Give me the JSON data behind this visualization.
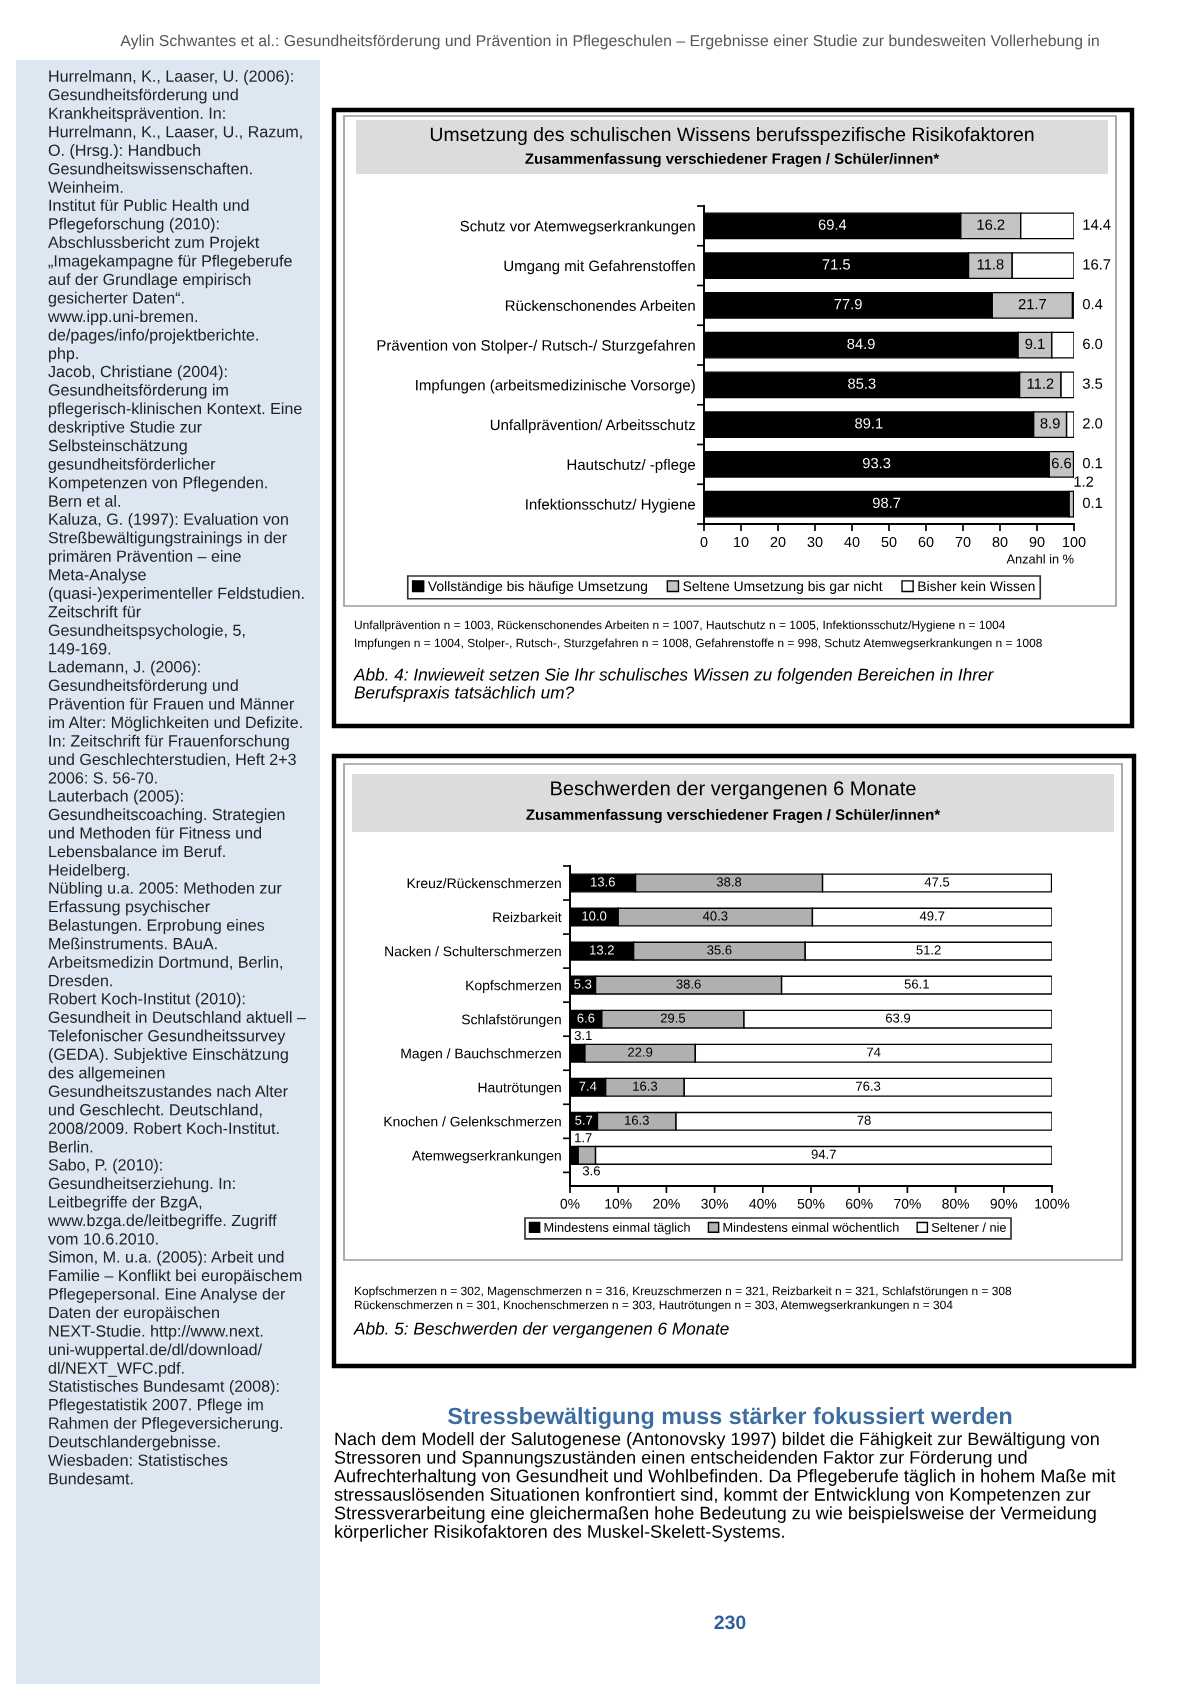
{
  "chart_data": [
    {
      "type": "other",
      "annotations": [
        "Aylin Schwantes et al.: Gesundheitsförderung und Prävention in Pflegeschulen – Ergebnisse einer Studie zur bundesweiten Vollerhebung in",
        "Hurrelmann, K., Laaser, U. (2006): Gesundheitsförderung und Krankheitsprävention. In: Hurrelmann, K., Laaser, U., Razum, O. (Hrsg.): Handbuch Gesundheitswissenschaften. Weinheim.",
        "Institut für Public Health und Pflegeforschung (2010): Abschlussbericht zum Projekt „Imagekampagne für Pflegeberufe auf der Grundlage empirisch gesicherter Daten“. www.ipp.uni-bremen.\nde/pages/info/projektberichte.\nphp.",
        "Jacob, Christiane (2004): Gesundheitsförderung im pflegerisch-klinischen Kontext. Eine deskriptive Studie zur Selbsteinschätzung gesundheitsförderlicher Kompetenzen von Pflegenden. Bern et al.",
        "Kaluza, G. (1997): Evaluation von Streßbewältigungstrainings in der primären Prävention – eine Meta-Analyse (quasi-)experimenteller Feldstudien. Zeitschrift für Gesundheitspsychologie, 5, 149-169.",
        "Lademann, J. (2006): Gesundheitsförderung und Prävention für Frauen und Männer im Alter: Möglichkeiten und Defizite. In: Zeitschrift für Frauenforschung und Geschlechterstudien, Heft 2+3 2006: S. 56-70.",
        "Lauterbach (2005): Gesundheitscoaching. Strategien und Methoden für Fitness und Lebensbalance im Beruf. Heidelberg.",
        "Nübling u.a. 2005: Methoden zur Erfassung psychischer Belastungen. Erprobung eines Meßinstruments. BAuA. Arbeitsmedizin Dortmund, Berlin, Dresden.",
        "Robert Koch-Institut (2010): Gesundheit in Deutschland aktuell – Telefonischer Gesundheitssurvey (GEDA). Subjektive Einschätzung des allgemeinen Gesundheitszustandes nach Alter und Geschlecht. Deutschland, 2008/2009. Robert Koch-Institut. Berlin.",
        "Sabo, P. (2010): Gesundheitserziehung. In: Leitbegriffe der BzgA, www.bzga.de/leitbegriffe. Zugriff vom 10.6.2010.",
        "Simon, M. u.a. (2005): Arbeit und Familie – Konflikt bei europäischem Pflegepersonal. Eine Analyse der Daten der europäischen NEXT-Studie. http://www.next.\nuni-wuppertal.de/dl/download/\ndl/NEXT_WFC.pdf.",
        "Statistisches Bundesamt (2008): Pflegestatistik 2007. Pflege im Rahmen der Pflegeversicherung. Deutschlandergebnisse. Wiesbaden: Statistisches Bundesamt."
      ]
    },
    {
      "type": "bar",
      "orientation": "horizontal",
      "stacked": true,
      "title": "Umsetzung des schulischen Wissens berufsspezifische Risikofaktoren",
      "subtitle": "Zusammenfassung verschiedener Fragen / Schüler/innen*",
      "xlabel": "Anzahl in %",
      "categories": [
        "Schutz vor Atemwegserkrankungen",
        "Umgang mit Gefahrenstoffen",
        "Rückenschonendes Arbeiten",
        "Prävention von Stolper-/ Rutsch-/ Sturzgefahren",
        "Impfungen (arbeitsmedizinische Vorsorge)",
        "Unfallprävention/ Arbeitsschutz",
        "Hautschutz/ -pflege",
        "Infektionsschutz/ Hygiene"
      ],
      "series": [
        {
          "name": "Vollständige bis häufige Umsetzung",
          "color": "#000000",
          "values": [
            69.4,
            71.5,
            77.9,
            84.9,
            85.3,
            89.1,
            93.3,
            98.7
          ],
          "value_labels": [
            "69.4",
            "71.5",
            "77.9",
            "84.9",
            "85.3",
            "89.1",
            "93.3",
            "98.7"
          ]
        },
        {
          "name": "Seltene Umsetzung bis gar nicht",
          "color": "#c4c4c4",
          "values": [
            16.2,
            11.8,
            21.7,
            9.1,
            11.2,
            8.9,
            6.6,
            1.2
          ],
          "value_labels": [
            "16.2",
            "11.8",
            "21.7",
            "9.1",
            "11.2",
            "8.9",
            "6.6",
            "1.2"
          ]
        },
        {
          "name": "Bisher kein Wissen",
          "color": "#ffffff",
          "values": [
            14.4,
            16.7,
            0.4,
            6.0,
            3.5,
            2.0,
            0.1,
            0.1
          ],
          "value_labels": [
            "14.4",
            "16.7",
            "0.4",
            "6.0",
            "3.5",
            "2.0",
            "0.1",
            "0.1"
          ]
        }
      ],
      "xlim": [
        0,
        100
      ],
      "xticks": [
        0,
        10,
        20,
        30,
        40,
        50,
        60,
        70,
        80,
        90,
        100
      ],
      "legend": "bottom",
      "annotations": [
        "Unfallprävention n = 1003, Rückenschonendes Arbeiten n = 1007, Hautschutz n = 1005, Infektionsschutz/Hygiene n = 1004",
        "Impfungen n = 1004, Stolper-, Rutsch-, Sturzgefahren n = 1008, Gefahrenstoffe n = 998, Schutz Atemwegserkrankungen n = 1008",
        "Abb. 4: Inwieweit setzen Sie Ihr schulisches Wissen zu folgenden Bereichen in Ihrer Berufspraxis tatsächlich um?"
      ]
    },
    {
      "type": "bar",
      "orientation": "horizontal",
      "stacked": true,
      "title": "Beschwerden der vergangenen 6 Monate",
      "subtitle": "Zusammenfassung verschiedener Fragen / Schüler/innen*",
      "categories": [
        "Kreuz/Rückenschmerzen",
        "Reizbarkeit",
        "Nacken / Schulterschmerzen",
        "Kopfschmerzen",
        "Schlafstörungen",
        "Magen / Bauchschmerzen",
        "Hautrötungen",
        "Knochen / Gelenkschmerzen",
        "Atemwegserkrankungen"
      ],
      "series": [
        {
          "name": "Mindestens einmal täglich",
          "color": "#000000",
          "values": [
            13.6,
            10.0,
            13.2,
            5.3,
            6.6,
            3.1,
            7.4,
            5.7,
            1.7
          ],
          "value_labels": [
            "13.6",
            "10.0",
            "13.2",
            "5.3",
            "6.6",
            "3.1",
            "7.4",
            "5.7",
            "1.7"
          ]
        },
        {
          "name": "Mindestens einmal wöchentlich",
          "color": "#b0b0b0",
          "values": [
            38.8,
            40.3,
            35.6,
            38.6,
            29.5,
            22.9,
            16.3,
            16.3,
            3.6
          ],
          "value_labels": [
            "38.8",
            "40.3",
            "35.6",
            "38.6",
            "29.5",
            "22.9",
            "16.3",
            "16.3",
            "3.6"
          ]
        },
        {
          "name": "Seltener / nie",
          "color": "#ffffff",
          "values": [
            47.5,
            49.7,
            51.2,
            56.1,
            63.9,
            74,
            76.3,
            78,
            94.7
          ],
          "value_labels": [
            "47.5",
            "49.7",
            "51.2",
            "56.1",
            "63.9",
            "74",
            "76.3",
            "78",
            "94.7"
          ]
        }
      ],
      "xlim": [
        0,
        100
      ],
      "xticks": [
        {
          "value": 0,
          "label": "0%"
        },
        {
          "value": 10,
          "label": "10%"
        },
        {
          "value": 20,
          "label": "20%"
        },
        {
          "value": 30,
          "label": "30%"
        },
        {
          "value": 40,
          "label": "40%"
        },
        {
          "value": 50,
          "label": "50%"
        },
        {
          "value": 60,
          "label": "60%"
        },
        {
          "value": 70,
          "label": "70%"
        },
        {
          "value": 80,
          "label": "80%"
        },
        {
          "value": 90,
          "label": "90%"
        },
        {
          "value": 100,
          "label": "100%"
        }
      ],
      "legend": "bottom",
      "annotations": [
        "Kopfschmerzen n = 302, Magenschmerzen n = 316, Kreuzschmerzen n = 321, Reizbarkeit n = 321, Schlafstörungen n = 308",
        "Rückenschmerzen n = 301, Knochenschmerzen n = 303, Hautrötungen n = 303, Atemwegserkrankungen n = 304",
        "Abb. 5: Beschwerden der vergangenen 6 Monate"
      ]
    },
    {
      "type": "other",
      "title": "Stressbewältigung muss stärker fokussiert werden",
      "annotations": [
        "Nach dem Modell der Salutogenese (Antonovsky 1997) bildet die Fähigkeit zur Bewältigung von Stressoren und Spannungszuständen einen entscheidenden Faktor zur Förderung und Aufrechterhaltung von Gesundheit und Wohlbefinden. Da Pflegeberufe täglich in hohem Maße mit stressauslösenden Situationen konfrontiert sind, kommt der Entwicklung von Kompetenzen zur Stressverarbeitung eine gleichermaßen hohe Bedeutung zu wie beispielsweise der Vermeidung körperlicher Risikofaktoren des Muskel-Skelett-Systems.",
        "230"
      ]
    }
  ]
}
